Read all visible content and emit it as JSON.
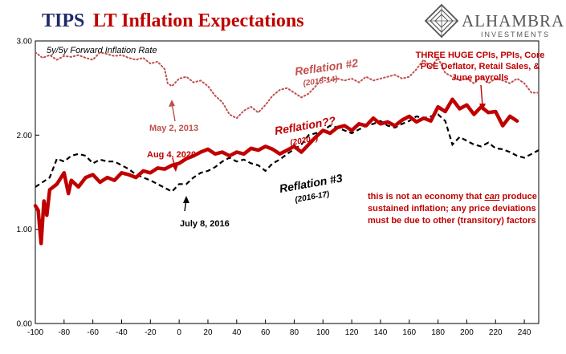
{
  "title_part1": "TIPS",
  "title_part2": "LT Inflation Expectations",
  "logo": {
    "name": "ALHAMBRA",
    "sub": "INVESTMENTS"
  },
  "colors": {
    "title_blue": "#1f2a6b",
    "red": "#c00000",
    "dotted_red": "#c0504d",
    "black": "#000000"
  },
  "chart_data": {
    "type": "line",
    "subtitle": "5y/5y Forward Inflation Rate",
    "xlim": [
      -100,
      250
    ],
    "ylim": [
      0,
      3
    ],
    "x_ticks": [
      -100,
      -80,
      -60,
      -40,
      -20,
      0,
      20,
      40,
      60,
      80,
      100,
      120,
      140,
      160,
      180,
      200,
      220,
      240
    ],
    "y_ticks": [
      "0.00",
      "1.00",
      "2.00",
      "3.00"
    ],
    "series": [
      {
        "style": "dotted",
        "color": "#c0504d",
        "x": [
          -100,
          -95,
          -90,
          -85,
          -80,
          -75,
          -70,
          -65,
          -60,
          -55,
          -50,
          -45,
          -40,
          -35,
          -30,
          -25,
          -20,
          -15,
          -10,
          -8,
          -5,
          0,
          5,
          10,
          15,
          20,
          25,
          30,
          35,
          40,
          45,
          50,
          55,
          60,
          65,
          70,
          75,
          80,
          85,
          90,
          95,
          100,
          105,
          110,
          115,
          120,
          125,
          130,
          135,
          140,
          145,
          150,
          155,
          160,
          165,
          170,
          175,
          180,
          185,
          190,
          195,
          200,
          205,
          210,
          215,
          220,
          225,
          230,
          235,
          240,
          245,
          250
        ],
        "y": [
          2.88,
          2.82,
          2.85,
          2.8,
          2.84,
          2.83,
          2.85,
          2.82,
          2.8,
          2.88,
          2.86,
          2.84,
          2.85,
          2.82,
          2.8,
          2.82,
          2.76,
          2.78,
          2.7,
          2.55,
          2.52,
          2.6,
          2.62,
          2.56,
          2.58,
          2.52,
          2.42,
          2.35,
          2.22,
          2.18,
          2.26,
          2.3,
          2.24,
          2.32,
          2.42,
          2.48,
          2.5,
          2.45,
          2.4,
          2.44,
          2.52,
          2.62,
          2.58,
          2.6,
          2.58,
          2.6,
          2.56,
          2.62,
          2.58,
          2.6,
          2.62,
          2.64,
          2.6,
          2.62,
          2.7,
          2.8,
          2.72,
          2.82,
          2.66,
          2.62,
          2.58,
          2.6,
          2.55,
          2.62,
          2.55,
          2.6,
          2.58,
          2.55,
          2.6,
          2.55,
          2.45,
          2.45
        ]
      },
      {
        "style": "dashed",
        "color": "#000000",
        "x": [
          -100,
          -95,
          -90,
          -85,
          -80,
          -75,
          -70,
          -65,
          -60,
          -55,
          -50,
          -45,
          -40,
          -35,
          -30,
          -25,
          -20,
          -15,
          -10,
          -5,
          0,
          5,
          10,
          15,
          20,
          25,
          30,
          35,
          40,
          45,
          50,
          55,
          60,
          65,
          70,
          75,
          80,
          85,
          90,
          95,
          100,
          105,
          110,
          115,
          120,
          125,
          130,
          135,
          140,
          145,
          150,
          155,
          160,
          165,
          170,
          175,
          180,
          185,
          190,
          195,
          200,
          205,
          210,
          215,
          220,
          225,
          230,
          235,
          240,
          245,
          250
        ],
        "y": [
          1.45,
          1.5,
          1.55,
          1.75,
          1.72,
          1.78,
          1.8,
          1.78,
          1.7,
          1.74,
          1.72,
          1.72,
          1.68,
          1.64,
          1.58,
          1.55,
          1.52,
          1.48,
          1.44,
          1.4,
          1.48,
          1.48,
          1.55,
          1.6,
          1.62,
          1.66,
          1.72,
          1.76,
          1.72,
          1.74,
          1.7,
          1.68,
          1.62,
          1.7,
          1.74,
          1.8,
          1.85,
          1.9,
          2.0,
          2.02,
          2.05,
          2.1,
          2.08,
          2.05,
          2.02,
          2.06,
          2.1,
          2.12,
          2.15,
          2.1,
          2.08,
          2.12,
          2.15,
          2.2,
          2.18,
          2.2,
          2.22,
          2.15,
          1.9,
          1.98,
          1.94,
          1.9,
          1.88,
          1.92,
          1.86,
          1.85,
          1.82,
          1.78,
          1.76,
          1.8,
          1.84
        ]
      },
      {
        "style": "solid",
        "color": "#c00000",
        "x": [
          -100,
          -98,
          -96,
          -94,
          -92,
          -90,
          -85,
          -80,
          -77,
          -75,
          -70,
          -65,
          -60,
          -55,
          -50,
          -45,
          -40,
          -35,
          -30,
          -25,
          -20,
          -15,
          -10,
          -5,
          0,
          5,
          10,
          15,
          20,
          25,
          30,
          35,
          40,
          45,
          50,
          55,
          60,
          65,
          70,
          75,
          80,
          85,
          90,
          95,
          100,
          105,
          110,
          115,
          120,
          125,
          130,
          135,
          140,
          145,
          150,
          155,
          160,
          165,
          170,
          175,
          180,
          185,
          190,
          195,
          200,
          205,
          210,
          215,
          220,
          225,
          230,
          235
        ],
        "y": [
          1.25,
          1.2,
          0.85,
          1.3,
          1.15,
          1.42,
          1.48,
          1.6,
          1.38,
          1.52,
          1.45,
          1.55,
          1.58,
          1.5,
          1.55,
          1.52,
          1.6,
          1.58,
          1.55,
          1.62,
          1.6,
          1.65,
          1.64,
          1.68,
          1.7,
          1.75,
          1.78,
          1.82,
          1.85,
          1.8,
          1.82,
          1.78,
          1.82,
          1.8,
          1.86,
          1.84,
          1.88,
          1.85,
          1.8,
          1.84,
          1.88,
          1.82,
          1.9,
          1.98,
          2.05,
          2.02,
          2.08,
          2.1,
          2.05,
          2.12,
          2.1,
          2.18,
          2.12,
          2.14,
          2.1,
          2.16,
          2.2,
          2.14,
          2.18,
          2.15,
          2.3,
          2.25,
          2.38,
          2.28,
          2.32,
          2.22,
          2.3,
          2.24,
          2.25,
          2.1,
          2.2,
          2.15
        ]
      }
    ],
    "annotations": [
      {
        "text": "Reflation #2",
        "color": "#c0504d",
        "kind": "big"
      },
      {
        "text": "(2013-14)",
        "color": "#c0504d",
        "kind": "small"
      },
      {
        "text": "May 2, 2013",
        "color": "#c0504d",
        "kind": "label"
      },
      {
        "text": "Reflation??",
        "color": "#c00000",
        "kind": "big"
      },
      {
        "text": "(2020- )",
        "color": "#c00000",
        "kind": "small"
      },
      {
        "text": "Aug 4, 2020",
        "color": "#c00000",
        "kind": "label"
      },
      {
        "text": "Reflation #3",
        "color": "#000000",
        "kind": "big"
      },
      {
        "text": "(2016-17)",
        "color": "#000000",
        "kind": "small"
      },
      {
        "text": "July 8, 2016",
        "color": "#000000",
        "kind": "label"
      }
    ],
    "note_top": [
      "THREE HUGE CPIs, PPIs, Core",
      "PCE Deflator, Retail Sales, &",
      "June payrolls"
    ],
    "note_bottom": [
      {
        "pre": "this is not an economy that ",
        "em": "can",
        "post": " produce"
      },
      {
        "pre": "sustained inflation; any price deviations",
        "em": "",
        "post": ""
      },
      {
        "pre": "must be due to other (transitory) factors",
        "em": "",
        "post": ""
      }
    ]
  }
}
